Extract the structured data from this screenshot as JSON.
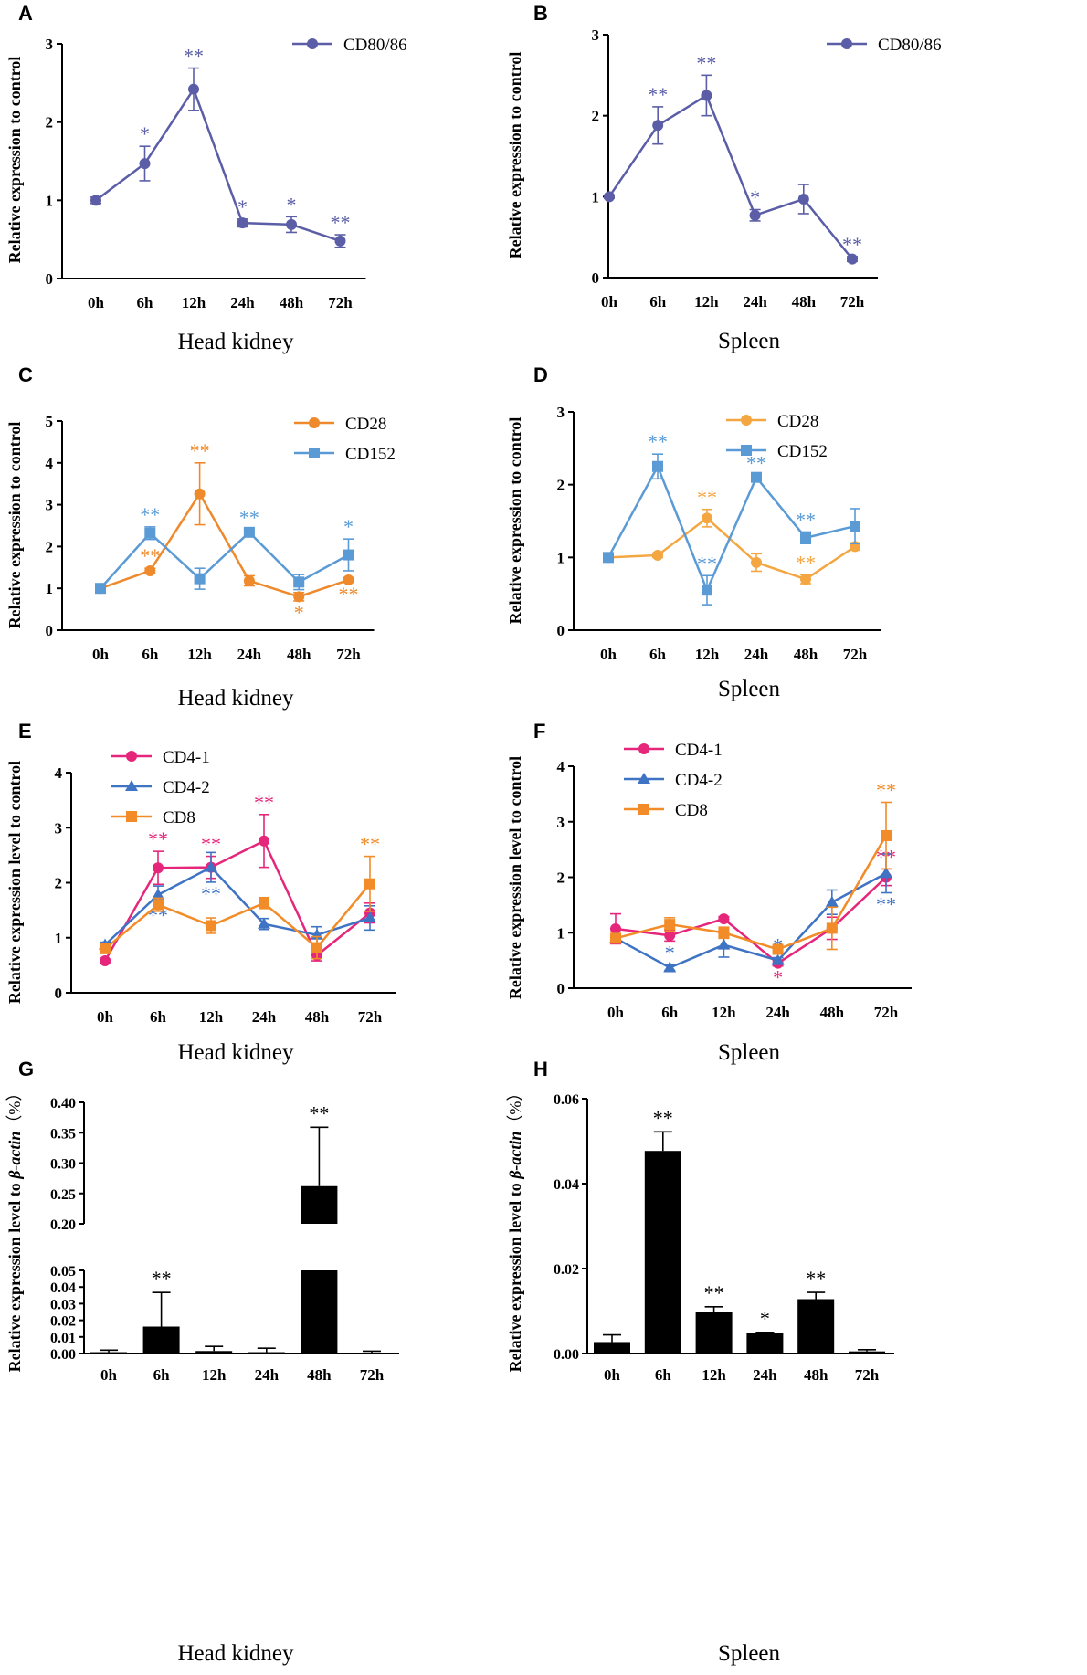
{
  "figure_title": "",
  "chart_data": [
    {
      "panel": "A",
      "type": "line",
      "xlabel": "Head kidney",
      "ylabel": "Relative expression to control",
      "categories": [
        "0h",
        "6h",
        "12h",
        "24h",
        "48h",
        "72h"
      ],
      "ylim": [
        0,
        3
      ],
      "yticks": [
        "0",
        "1",
        "2",
        "3"
      ],
      "legend_position": "top-right",
      "series": [
        {
          "name": "CD80/86",
          "color": "#5b5ea6",
          "marker": "circle",
          "values": [
            1.0,
            1.47,
            2.42,
            0.71,
            0.69,
            0.48
          ],
          "errors": [
            0.04,
            0.22,
            0.27,
            0.05,
            0.1,
            0.08
          ],
          "sig": [
            "",
            "*",
            "**",
            "*",
            "*",
            "**"
          ]
        }
      ]
    },
    {
      "panel": "B",
      "type": "line",
      "xlabel": "Spleen",
      "ylabel": "Relative expression to control",
      "categories": [
        "0h",
        "6h",
        "12h",
        "24h",
        "48h",
        "72h"
      ],
      "ylim": [
        0,
        3
      ],
      "yticks": [
        "0",
        "1",
        "2",
        "3"
      ],
      "legend_position": "top-right",
      "series": [
        {
          "name": "CD80/86",
          "color": "#5b5ea6",
          "marker": "circle",
          "values": [
            1.0,
            1.88,
            2.25,
            0.77,
            0.97,
            0.23
          ],
          "errors": [
            0.02,
            0.23,
            0.25,
            0.07,
            0.18,
            0.03
          ],
          "sig": [
            "",
            "**",
            "**",
            "*",
            "",
            "**"
          ]
        }
      ]
    },
    {
      "panel": "C",
      "type": "line",
      "xlabel": "Head kidney",
      "ylabel": "Relative expression to control",
      "categories": [
        "0h",
        "6h",
        "12h",
        "24h",
        "48h",
        "72h"
      ],
      "ylim": [
        0,
        5
      ],
      "yticks": [
        "0",
        "1",
        "2",
        "3",
        "4",
        "5"
      ],
      "legend_position": "top-right",
      "series": [
        {
          "name": "CD28",
          "color": "#ee8a2c",
          "marker": "circle",
          "values": [
            1.0,
            1.42,
            3.26,
            1.18,
            0.8,
            1.2
          ],
          "errors": [
            0.03,
            0.06,
            0.74,
            0.12,
            0.1,
            0.06
          ],
          "sig": [
            "",
            "**",
            "**",
            "",
            "*",
            "**"
          ],
          "sig_side": [
            "up",
            "up",
            "up",
            "up",
            "down",
            "down"
          ]
        },
        {
          "name": "CD152",
          "color": "#5b9bd5",
          "marker": "square",
          "values": [
            1.0,
            2.32,
            1.23,
            2.34,
            1.15,
            1.8
          ],
          "errors": [
            0.03,
            0.15,
            0.25,
            0.06,
            0.18,
            0.38
          ],
          "sig": [
            "",
            "**",
            "",
            "**",
            "",
            "*"
          ],
          "sig_side": [
            "up",
            "up",
            "up",
            "up",
            "up",
            "up"
          ]
        }
      ]
    },
    {
      "panel": "D",
      "type": "line",
      "xlabel": "Spleen",
      "ylabel": "Relative expression to control",
      "categories": [
        "0h",
        "6h",
        "12h",
        "24h",
        "48h",
        "72h"
      ],
      "ylim": [
        0,
        3
      ],
      "yticks": [
        "0",
        "1",
        "2",
        "3"
      ],
      "legend_position": "top-right",
      "series": [
        {
          "name": "CD28",
          "color": "#f4a640",
          "marker": "circle",
          "values": [
            1.0,
            1.03,
            1.54,
            0.93,
            0.7,
            1.15
          ],
          "errors": [
            0.02,
            0.03,
            0.12,
            0.12,
            0.06,
            0.05
          ],
          "sig": [
            "",
            "",
            "**",
            "",
            "**",
            ""
          ],
          "sig_side": [
            "up",
            "up",
            "up",
            "up",
            "up",
            "up"
          ]
        },
        {
          "name": "CD152",
          "color": "#5b9bd5",
          "marker": "square",
          "values": [
            1.0,
            2.25,
            0.55,
            2.1,
            1.27,
            1.43
          ],
          "errors": [
            0.02,
            0.17,
            0.2,
            0.03,
            0.08,
            0.24
          ],
          "sig": [
            "",
            "**",
            "**",
            "**",
            "**",
            ""
          ],
          "sig_side": [
            "up",
            "up",
            "up",
            "up",
            "up",
            "up"
          ]
        }
      ]
    },
    {
      "panel": "E",
      "type": "line",
      "xlabel": "Head kidney",
      "ylabel": "Relative expression level to control",
      "categories": [
        "0h",
        "6h",
        "12h",
        "24h",
        "48h",
        "72h"
      ],
      "ylim": [
        0,
        4
      ],
      "yticks": [
        "0",
        "1",
        "2",
        "3",
        "4"
      ],
      "legend_position": "top-left",
      "series": [
        {
          "name": "CD4-1",
          "color": "#e5267b",
          "marker": "circle",
          "values": [
            0.58,
            2.27,
            2.28,
            2.76,
            0.68,
            1.45
          ],
          "errors": [
            0.03,
            0.3,
            0.2,
            0.48,
            0.1,
            0.18
          ],
          "sig": [
            "",
            "**",
            "**",
            "**",
            "",
            ""
          ],
          "sig_side": [
            "up",
            "up",
            "up",
            "up",
            "up",
            "up"
          ]
        },
        {
          "name": "CD4-2",
          "color": "#3f73c4",
          "marker": "triangle",
          "values": [
            0.87,
            1.78,
            2.28,
            1.25,
            1.05,
            1.36
          ],
          "errors": [
            0.05,
            0.16,
            0.27,
            0.1,
            0.15,
            0.22
          ],
          "sig": [
            "",
            "**",
            "**",
            "",
            "",
            ""
          ],
          "sig_side": [
            "down",
            "down",
            "down",
            "down",
            "down",
            "down"
          ]
        },
        {
          "name": "CD8",
          "color": "#f28c28",
          "marker": "square",
          "values": [
            0.8,
            1.6,
            1.22,
            1.63,
            0.82,
            1.98
          ],
          "errors": [
            0.05,
            0.12,
            0.14,
            0.1,
            0.2,
            0.5
          ],
          "sig": [
            "",
            "",
            "",
            "",
            "",
            "**"
          ],
          "sig_side": [
            "up",
            "up",
            "up",
            "up",
            "up",
            "up"
          ]
        }
      ]
    },
    {
      "panel": "F",
      "type": "line",
      "xlabel": "Spleen",
      "ylabel": "Relative expression level to control",
      "categories": [
        "0h",
        "6h",
        "12h",
        "24h",
        "48h",
        "72h"
      ],
      "ylim": [
        0,
        4
      ],
      "yticks": [
        "0",
        "1",
        "2",
        "3",
        "4"
      ],
      "legend_position": "top-left",
      "series": [
        {
          "name": "CD4-1",
          "color": "#e5267b",
          "marker": "circle",
          "values": [
            1.07,
            0.95,
            1.25,
            0.45,
            1.08,
            2.0
          ],
          "errors": [
            0.27,
            0.1,
            0.04,
            0.05,
            0.2,
            0.15
          ],
          "sig": [
            "",
            "",
            "",
            "*",
            "",
            "**"
          ],
          "sig_side": [
            "up",
            "up",
            "up",
            "down",
            "up",
            "up"
          ]
        },
        {
          "name": "CD4-2",
          "color": "#3f73c4",
          "marker": "triangle",
          "values": [
            0.9,
            0.37,
            0.78,
            0.5,
            1.55,
            2.07
          ],
          "errors": [
            0.05,
            0.05,
            0.22,
            0.05,
            0.22,
            0.35
          ],
          "sig": [
            "",
            "*",
            "",
            "*",
            "",
            "**"
          ],
          "sig_side": [
            "up",
            "up",
            "up",
            "up",
            "up",
            "down"
          ]
        },
        {
          "name": "CD8",
          "color": "#f28c28",
          "marker": "square",
          "values": [
            0.9,
            1.15,
            1.0,
            0.7,
            1.08,
            2.75
          ],
          "errors": [
            0.05,
            0.12,
            0.1,
            0.06,
            0.38,
            0.6
          ],
          "sig": [
            "",
            "",
            "",
            "",
            "",
            "**"
          ],
          "sig_side": [
            "up",
            "up",
            "up",
            "up",
            "up",
            "up"
          ]
        }
      ]
    },
    {
      "panel": "G",
      "type": "bar",
      "xlabel": "Head kidney",
      "ylabel": "Relative expression level to β-actin (%)",
      "ylabel_plain": "Relative expression level to ",
      "ylabel_italic": "β-actin",
      "ylabel_suffix": "（%）",
      "categories": [
        "0h",
        "6h",
        "12h",
        "24h",
        "48h",
        "72h"
      ],
      "axis_break": true,
      "lower_range": [
        0,
        0.05
      ],
      "upper_range": [
        0.2,
        0.4
      ],
      "lower_ticks": [
        "0.00",
        "0.01",
        "0.02",
        "0.03",
        "0.04",
        "0.05"
      ],
      "upper_ticks": [
        "0.20",
        "0.25",
        "0.30",
        "0.35",
        "0.40"
      ],
      "color": "#000000",
      "values": [
        0.0008,
        0.0162,
        0.0015,
        0.0008,
        0.262,
        0.0002
      ],
      "errors": [
        0.0012,
        0.0205,
        0.0028,
        0.0024,
        0.097,
        0.0012
      ],
      "sig": [
        "",
        "**",
        "",
        "",
        "**",
        ""
      ]
    },
    {
      "panel": "H",
      "type": "bar",
      "xlabel": "Spleen",
      "ylabel": "Relative expression level to β-actin (%)",
      "ylabel_plain": "Relative expression level to ",
      "ylabel_italic": "β-actin",
      "ylabel_suffix": "（%）",
      "categories": [
        "0h",
        "6h",
        "12h",
        "24h",
        "48h",
        "72h"
      ],
      "ylim": [
        0,
        0.06
      ],
      "yticks": [
        "0.00",
        "0.02",
        "0.04",
        "0.06"
      ],
      "color": "#000000",
      "values": [
        0.0027,
        0.0477,
        0.0098,
        0.0048,
        0.0128,
        0.0005
      ],
      "errors": [
        0.0017,
        0.0045,
        0.0012,
        0.0002,
        0.0016,
        0.0004
      ],
      "sig": [
        "",
        "**",
        "**",
        "*",
        "**",
        ""
      ]
    }
  ]
}
